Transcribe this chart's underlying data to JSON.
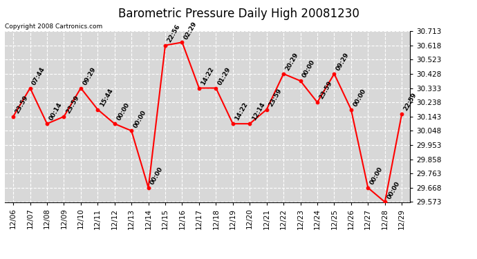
{
  "title": "Barometric Pressure Daily High 20081230",
  "copyright": "Copyright 2008 Cartronics.com",
  "dates": [
    "12/06",
    "12/07",
    "12/08",
    "12/09",
    "12/10",
    "12/11",
    "12/12",
    "12/13",
    "12/14",
    "12/15",
    "12/16",
    "12/17",
    "12/18",
    "12/19",
    "12/20",
    "12/21",
    "12/22",
    "12/23",
    "12/24",
    "12/25",
    "12/26",
    "12/27",
    "12/28",
    "12/29"
  ],
  "values": [
    30.143,
    30.333,
    30.095,
    30.143,
    30.333,
    30.19,
    30.095,
    30.048,
    29.668,
    30.618,
    30.638,
    30.333,
    30.333,
    30.095,
    30.095,
    30.19,
    30.428,
    30.381,
    30.238,
    30.428,
    30.19,
    29.668,
    29.573,
    30.16
  ],
  "labels": [
    "23:59",
    "07:44",
    "00:14",
    "23:59",
    "09:29",
    "15:44",
    "00:00",
    "00:00",
    "00:00",
    "22:56",
    "02:29",
    "14:22",
    "01:29",
    "14:22",
    "12:14",
    "23:59",
    "20:29",
    "00:00",
    "23:59",
    "09:29",
    "00:00",
    "00:00",
    "00:00",
    "22:59"
  ],
  "ylim": [
    29.573,
    30.713
  ],
  "yticks": [
    29.573,
    29.668,
    29.763,
    29.858,
    29.953,
    30.048,
    30.143,
    30.238,
    30.333,
    30.428,
    30.523,
    30.618,
    30.713
  ],
  "line_color": "#ff0000",
  "marker_color": "#ff0000",
  "bg_color": "#ffffff",
  "plot_bg_color": "#d8d8d8",
  "grid_color": "#ffffff",
  "title_fontsize": 12,
  "label_fontsize": 6.5,
  "tick_fontsize": 7.5,
  "copyright_fontsize": 6.5
}
